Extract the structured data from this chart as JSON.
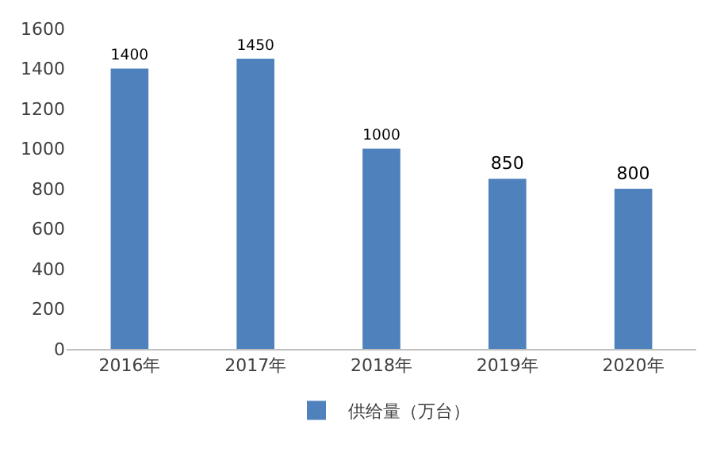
{
  "chart_data": {
    "type": "bar",
    "categories": [
      "2016年",
      "2017年",
      "2018年",
      "2019年",
      "2020年"
    ],
    "series": [
      {
        "name": "供给量（万台）",
        "color": "#4f81bd",
        "values": [
          1400,
          1450,
          1000,
          850,
          800
        ]
      }
    ],
    "ylim": [
      0,
      1600
    ],
    "yticks": [
      0,
      200,
      400,
      600,
      800,
      1000,
      1200,
      1400,
      1600
    ],
    "grid": false,
    "legend": "bottom",
    "data_labels": true
  }
}
